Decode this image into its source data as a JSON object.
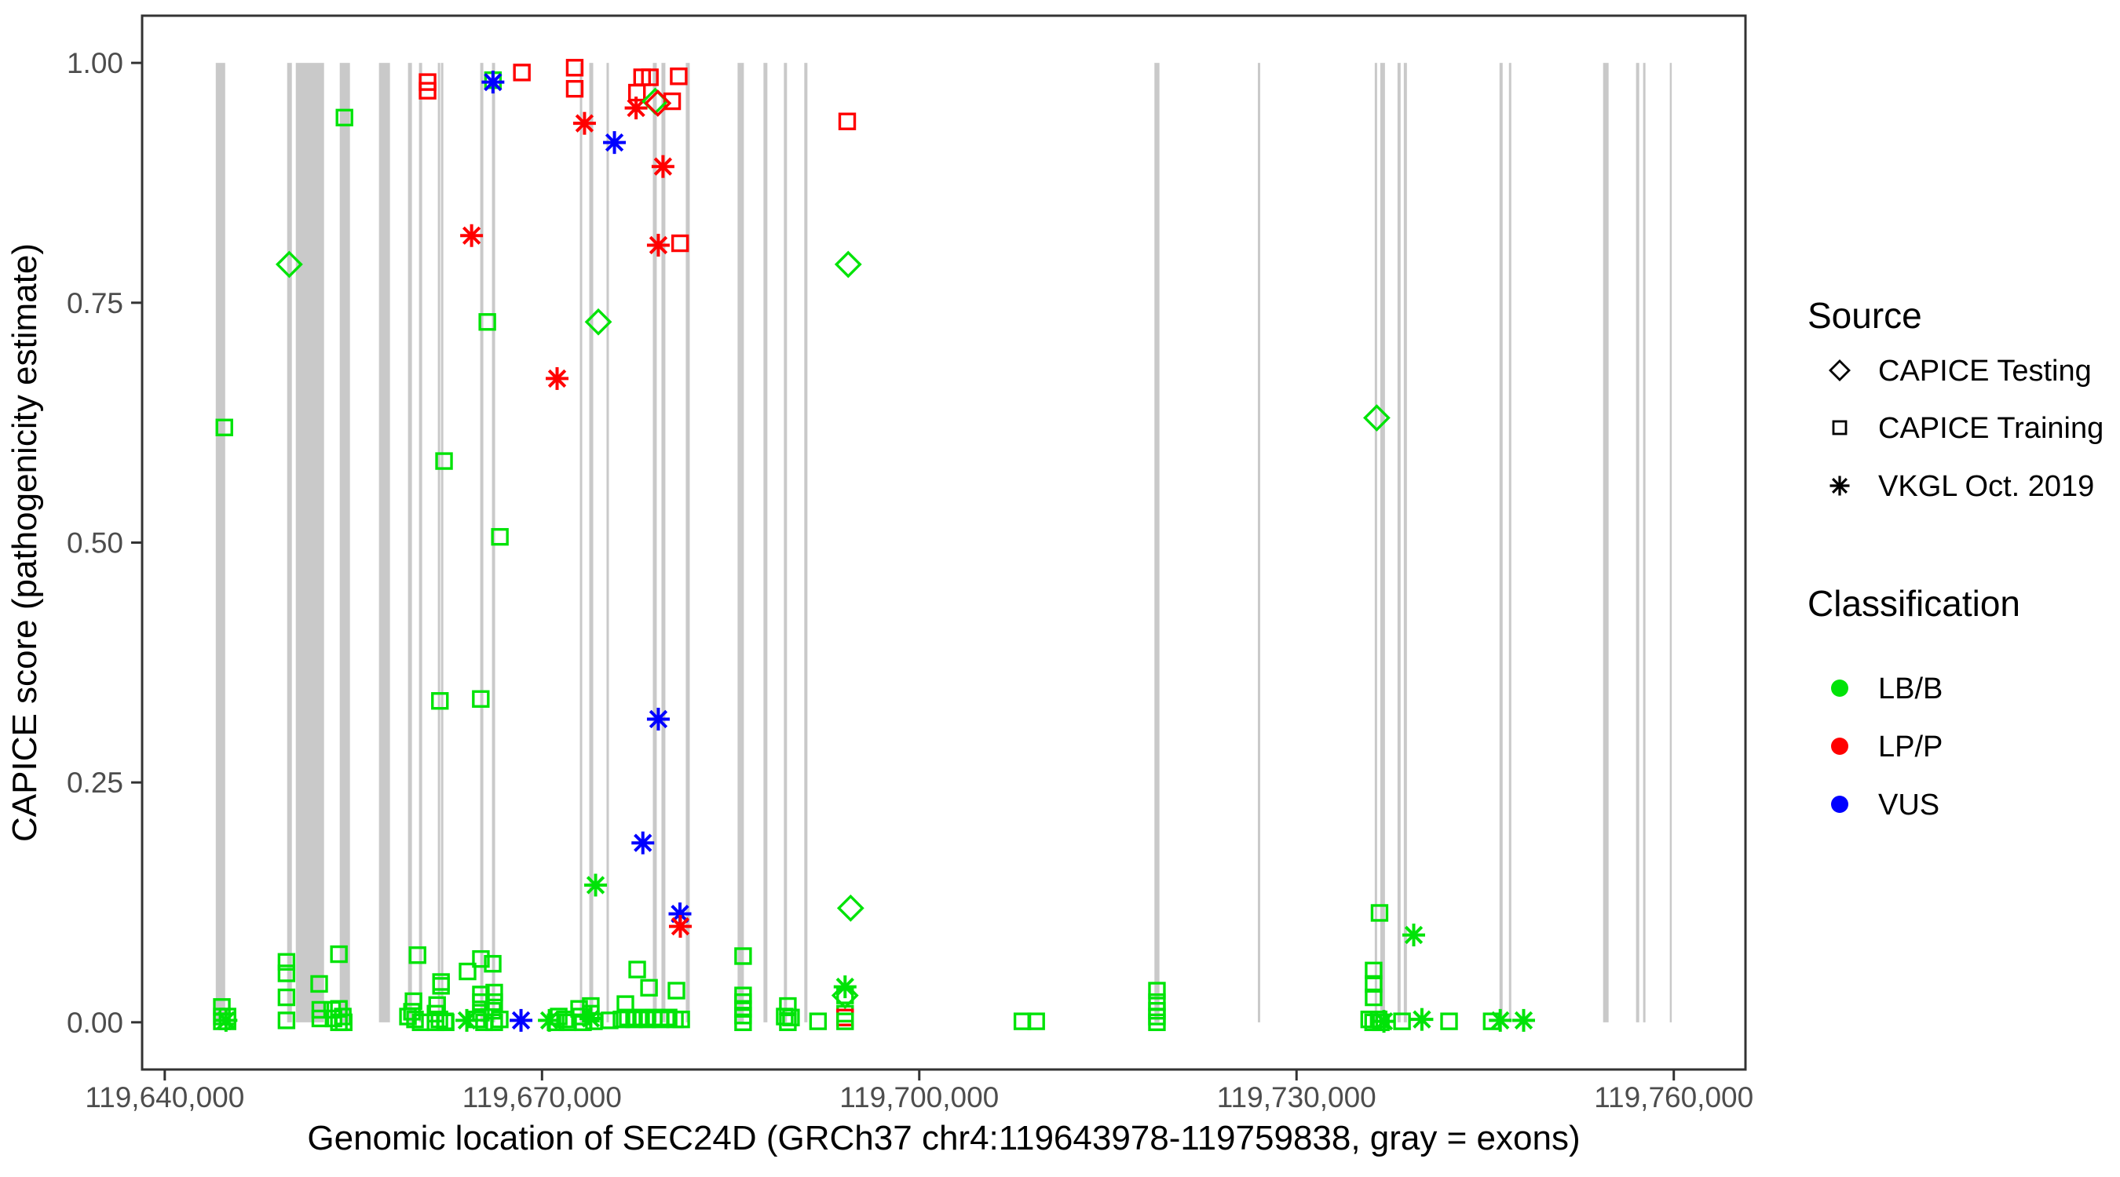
{
  "figure": {
    "y_axis_title": "CAPICE score (pathogenicity estimate)",
    "x_axis_title": "Genomic location of SEC24D (GRCh37 chr4:119643978-119759838, gray = exons)"
  },
  "legend": {
    "source": {
      "title": "Source",
      "items": [
        {
          "label": "CAPICE Testing",
          "marker": "diamond-icon"
        },
        {
          "label": "CAPICE Training",
          "marker": "square-icon"
        },
        {
          "label": "VKGL Oct. 2019",
          "marker": "asterisk-icon"
        }
      ]
    },
    "classification": {
      "title": "Classification",
      "items": [
        {
          "label": "LB/B",
          "color": "#00E308"
        },
        {
          "label": "LP/P",
          "color": "#FF0000"
        },
        {
          "label": "VUS",
          "color": "#0000FF"
        }
      ]
    }
  },
  "colors": {
    "LB/B": "#00E308",
    "LP/P": "#FF0000",
    "VUS": "#0000FF",
    "exon": "#C9C9C9",
    "axis_text": "#4D4D4D",
    "axis_line": "#333333",
    "title_text": "#000000"
  },
  "chart_data": {
    "type": "scatter",
    "title": "",
    "xlabel": "Genomic location of SEC24D (GRCh37 chr4:119643978-119759838, gray = exons)",
    "ylabel": "CAPICE score (pathogenicity estimate)",
    "x_domain": [
      119638200,
      119765700
    ],
    "y_domain": [
      -0.0492,
      1.0492
    ],
    "x_ticks": [
      {
        "value": 119640000,
        "label": "119,640,000"
      },
      {
        "value": 119670000,
        "label": "119,670,000"
      },
      {
        "value": 119700000,
        "label": "119,700,000"
      },
      {
        "value": 119730000,
        "label": "119,730,000"
      },
      {
        "value": 119760000,
        "label": "119,760,000"
      }
    ],
    "y_ticks": [
      {
        "value": 0.0,
        "label": "0.00"
      },
      {
        "value": 0.25,
        "label": "0.25"
      },
      {
        "value": 0.5,
        "label": "0.50"
      },
      {
        "value": 0.75,
        "label": "0.75"
      },
      {
        "value": 1.0,
        "label": "1.00"
      }
    ],
    "gene_region_note": "gray = exons",
    "exons": [
      [
        119644056,
        119644805
      ],
      [
        119649734,
        119650109
      ],
      [
        119650421,
        119652667
      ],
      [
        119653915,
        119654726
      ],
      [
        119657035,
        119657909
      ],
      [
        119659344,
        119659656
      ],
      [
        119660218,
        119660467
      ],
      [
        119661715,
        119661902
      ],
      [
        119661965,
        119662152
      ],
      [
        119665085,
        119665334
      ],
      [
        119666021,
        119666270
      ],
      [
        119673010,
        119673197
      ],
      [
        119673758,
        119674070
      ],
      [
        119675131,
        119675318
      ],
      [
        119678813,
        119679125
      ],
      [
        119679499,
        119679811
      ],
      [
        119681434,
        119681746
      ],
      [
        119685552,
        119686051
      ],
      [
        119687611,
        119687923
      ],
      [
        119689234,
        119689483
      ],
      [
        119690856,
        119691106
      ],
      [
        119718700,
        119719100
      ],
      [
        119726923,
        119727110
      ],
      [
        119736221,
        119736408
      ],
      [
        119736658,
        119737032
      ],
      [
        119738030,
        119738280
      ],
      [
        119738530,
        119738779
      ],
      [
        119746142,
        119746392
      ],
      [
        119746891,
        119747078
      ],
      [
        119754379,
        119754816
      ],
      [
        119757000,
        119757250
      ],
      [
        119757562,
        119757749
      ],
      [
        119759683,
        119759838
      ]
    ],
    "series": [
      {
        "name": "CAPICE Testing",
        "marker": "diamond",
        "points": [
          [
            119649900,
            0.79,
            "LB/B"
          ],
          [
            119674480,
            0.73,
            "LB/B"
          ],
          [
            119679000,
            0.96,
            "LB/B"
          ],
          [
            119679210,
            0.958,
            "LP/P"
          ],
          [
            119694350,
            0.79,
            "LB/B"
          ],
          [
            119694540,
            0.119,
            "LB/B"
          ],
          [
            119694100,
            0.028,
            "LB/B"
          ],
          [
            119736380,
            0.63,
            "LB/B"
          ]
        ]
      },
      {
        "name": "CAPICE Training",
        "marker": "square",
        "points": [
          [
            119654290,
            0.943,
            "LB/B"
          ],
          [
            119660900,
            0.98,
            "LP/P"
          ],
          [
            119660900,
            0.971,
            "LP/P"
          ],
          [
            119666100,
            0.982,
            "LB/B"
          ],
          [
            119668400,
            0.99,
            "LP/P"
          ],
          [
            119672600,
            0.995,
            "LP/P"
          ],
          [
            119672600,
            0.973,
            "LP/P"
          ],
          [
            119677960,
            0.985,
            "LP/P"
          ],
          [
            119678580,
            0.985,
            "LP/P"
          ],
          [
            119680870,
            0.986,
            "LP/P"
          ],
          [
            119677550,
            0.969,
            "LP/P"
          ],
          [
            119680350,
            0.96,
            "LP/P"
          ],
          [
            119680980,
            0.812,
            "LP/P"
          ],
          [
            119694270,
            0.939,
            "LP/P"
          ],
          [
            119644740,
            0.62,
            "LB/B"
          ],
          [
            119662210,
            0.585,
            "LB/B"
          ],
          [
            119666650,
            0.506,
            "LB/B"
          ],
          [
            119665650,
            0.73,
            "LB/B"
          ],
          [
            119661880,
            0.335,
            "LB/B"
          ],
          [
            119665130,
            0.337,
            "LB/B"
          ],
          [
            119736600,
            0.114,
            "LB/B"
          ],
          [
            119736130,
            0.054,
            "LB/B"
          ],
          [
            119736130,
            0.04,
            "LB/B"
          ],
          [
            119736130,
            0.026,
            "LB/B"
          ],
          [
            119685990,
            0.069,
            "LB/B"
          ],
          [
            119644540,
            0.016,
            "LB/B"
          ],
          [
            119644540,
            0.006,
            "LB/B"
          ],
          [
            119644990,
            0.006,
            "LB/B"
          ],
          [
            119644540,
            0.001,
            "LB/B"
          ],
          [
            119644990,
            0.001,
            "LB/B"
          ],
          [
            119649680,
            0.063,
            "LB/B"
          ],
          [
            119649680,
            0.051,
            "LB/B"
          ],
          [
            119649680,
            0.026,
            "LB/B"
          ],
          [
            119649680,
            0.002,
            "LB/B"
          ],
          [
            119652280,
            0.04,
            "LB/B"
          ],
          [
            119652370,
            0.013,
            "LB/B"
          ],
          [
            119653310,
            0.013,
            "LB/B"
          ],
          [
            119652370,
            0.004,
            "LB/B"
          ],
          [
            119653420,
            0.004,
            "LB/B"
          ],
          [
            119653850,
            0.071,
            "LB/B"
          ],
          [
            119653850,
            0.014,
            "LB/B"
          ],
          [
            119654160,
            0.006,
            "LB/B"
          ],
          [
            119653850,
            0.0,
            "LB/B"
          ],
          [
            119654230,
            0.0,
            "LB/B"
          ],
          [
            119660100,
            0.07,
            "LB/B"
          ],
          [
            119659780,
            0.022,
            "LB/B"
          ],
          [
            119659660,
            0.011,
            "LB/B"
          ],
          [
            119659340,
            0.006,
            "LB/B"
          ],
          [
            119659900,
            0.003,
            "LB/B"
          ],
          [
            119660350,
            0.0,
            "LB/B"
          ],
          [
            119661970,
            0.042,
            "LB/B"
          ],
          [
            119661970,
            0.038,
            "LB/B"
          ],
          [
            119661660,
            0.018,
            "LB/B"
          ],
          [
            119661530,
            0.009,
            "LB/B"
          ],
          [
            119661840,
            0.003,
            "LB/B"
          ],
          [
            119662280,
            0.001,
            "LB/B"
          ],
          [
            119661530,
            0.0,
            "LB/B"
          ],
          [
            119662340,
            0.0,
            "LB/B"
          ],
          [
            119664080,
            0.053,
            "LB/B"
          ],
          [
            119665140,
            0.066,
            "LB/B"
          ],
          [
            119666080,
            0.061,
            "LB/B"
          ],
          [
            119665140,
            0.029,
            "LB/B"
          ],
          [
            119665140,
            0.021,
            "LB/B"
          ],
          [
            119666200,
            0.031,
            "LB/B"
          ],
          [
            119666200,
            0.021,
            "LB/B"
          ],
          [
            119665140,
            0.01,
            "LB/B"
          ],
          [
            119666080,
            0.012,
            "LB/B"
          ],
          [
            119664830,
            0.003,
            "LB/B"
          ],
          [
            119665390,
            0.0,
            "LB/B"
          ],
          [
            119666200,
            0.0,
            "LB/B"
          ],
          [
            119666640,
            0.003,
            "LB/B"
          ],
          [
            119671330,
            0.006,
            "LB/B"
          ],
          [
            119671830,
            0.003,
            "LB/B"
          ],
          [
            119671080,
            0.0,
            "LB/B"
          ],
          [
            119672020,
            0.0,
            "LB/B"
          ],
          [
            119672950,
            0.014,
            "LB/B"
          ],
          [
            119673880,
            0.017,
            "LB/B"
          ],
          [
            119673070,
            0.006,
            "LB/B"
          ],
          [
            119673880,
            0.009,
            "LB/B"
          ],
          [
            119673260,
            0.0,
            "LB/B"
          ],
          [
            119674130,
            0.001,
            "LB/B"
          ],
          [
            119675380,
            0.002,
            "LB/B"
          ],
          [
            119676630,
            0.019,
            "LB/B"
          ],
          [
            119677570,
            0.055,
            "LB/B"
          ],
          [
            119678510,
            0.036,
            "LB/B"
          ],
          [
            119680690,
            0.033,
            "LB/B"
          ],
          [
            119676320,
            0.003,
            "LB/B"
          ],
          [
            119676820,
            0.005,
            "LB/B"
          ],
          [
            119677320,
            0.003,
            "LB/B"
          ],
          [
            119677880,
            0.005,
            "LB/B"
          ],
          [
            119678380,
            0.003,
            "LB/B"
          ],
          [
            119678880,
            0.005,
            "LB/B"
          ],
          [
            119679440,
            0.003,
            "LB/B"
          ],
          [
            119680070,
            0.005,
            "LB/B"
          ],
          [
            119680570,
            0.003,
            "LB/B"
          ],
          [
            119681070,
            0.003,
            "LB/B"
          ],
          [
            119685990,
            0.028,
            "LB/B"
          ],
          [
            119685990,
            0.021,
            "LB/B"
          ],
          [
            119685990,
            0.014,
            "LB/B"
          ],
          [
            119685990,
            0.007,
            "LB/B"
          ],
          [
            119685990,
            0.0,
            "LB/B"
          ],
          [
            119689550,
            0.017,
            "LB/B"
          ],
          [
            119689300,
            0.006,
            "LB/B"
          ],
          [
            119689800,
            0.005,
            "LB/B"
          ],
          [
            119689550,
            0.0,
            "LB/B"
          ],
          [
            119691950,
            0.001,
            "LB/B"
          ],
          [
            119694100,
            0.028,
            "LB/B"
          ],
          [
            119694100,
            0.009,
            "LB/B"
          ],
          [
            119694100,
            0.005,
            "LP/P"
          ],
          [
            119694100,
            0.001,
            "LB/B"
          ],
          [
            119708200,
            0.001,
            "LB/B"
          ],
          [
            119709300,
            0.001,
            "LB/B"
          ],
          [
            119718900,
            0.033,
            "LB/B"
          ],
          [
            119718900,
            0.021,
            "LB/B"
          ],
          [
            119718900,
            0.012,
            "LB/B"
          ],
          [
            119718900,
            0.006,
            "LB/B"
          ],
          [
            119718900,
            0.0,
            "LB/B"
          ],
          [
            119735780,
            0.003,
            "LB/B"
          ],
          [
            119736530,
            0.003,
            "LB/B"
          ],
          [
            119736090,
            0.0,
            "LB/B"
          ],
          [
            119736710,
            0.0,
            "LB/B"
          ],
          [
            119738390,
            0.001,
            "LB/B"
          ],
          [
            119742130,
            0.001,
            "LB/B"
          ],
          [
            119745520,
            0.001,
            "LB/B"
          ]
        ]
      },
      {
        "name": "VKGL Oct. 2019",
        "marker": "asterisk",
        "points": [
          [
            119666100,
            0.98,
            "VUS"
          ],
          [
            119673380,
            0.937,
            "LP/P"
          ],
          [
            119675760,
            0.917,
            "VUS"
          ],
          [
            119677480,
            0.953,
            "LP/P"
          ],
          [
            119679620,
            0.892,
            "LP/P"
          ],
          [
            119679250,
            0.81,
            "LP/P"
          ],
          [
            119664400,
            0.82,
            "LP/P"
          ],
          [
            119671200,
            0.671,
            "LP/P"
          ],
          [
            119679250,
            0.316,
            "VUS"
          ],
          [
            119678020,
            0.187,
            "VUS"
          ],
          [
            119674260,
            0.143,
            "LB/B"
          ],
          [
            119680970,
            0.113,
            "VUS"
          ],
          [
            119681000,
            0.1,
            "LP/P"
          ],
          [
            119739320,
            0.091,
            "LB/B"
          ],
          [
            119644870,
            0.002,
            "LB/B"
          ],
          [
            119664020,
            0.002,
            "LB/B"
          ],
          [
            119668330,
            0.002,
            "VUS"
          ],
          [
            119670580,
            0.002,
            "LB/B"
          ],
          [
            119673880,
            0.004,
            "LB/B"
          ],
          [
            119694100,
            0.037,
            "LB/B"
          ],
          [
            119736950,
            0.001,
            "LB/B"
          ],
          [
            119739970,
            0.003,
            "LB/B"
          ],
          [
            119746200,
            0.002,
            "LB/B"
          ],
          [
            119748060,
            0.002,
            "LB/B"
          ]
        ]
      }
    ]
  }
}
